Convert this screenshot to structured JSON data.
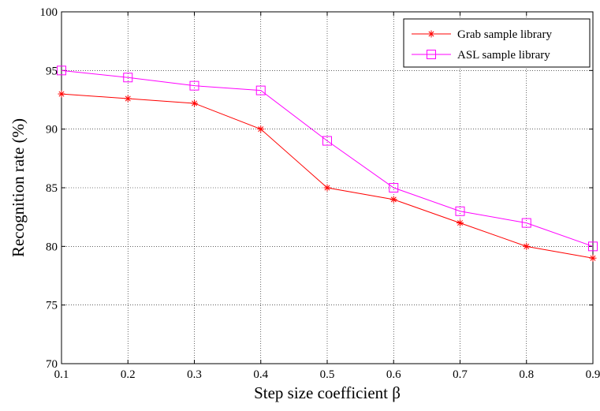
{
  "chart_data": {
    "type": "line",
    "title": "",
    "xlabel": "Step size coefficient β",
    "ylabel": "Recognition rate (%)",
    "x": [
      0.1,
      0.2,
      0.3,
      0.4,
      0.5,
      0.6,
      0.7,
      0.8,
      0.9
    ],
    "x_tick_labels": [
      "0.1",
      "0.2",
      "0.3",
      "0.4",
      "0.5",
      "0.6",
      "0.7",
      "0.8",
      "0.9"
    ],
    "y_tick_labels": [
      "70",
      "75",
      "80",
      "85",
      "90",
      "95",
      "100"
    ],
    "y_ticks": [
      70,
      75,
      80,
      85,
      90,
      95,
      100
    ],
    "xlim": [
      0.1,
      0.9
    ],
    "ylim": [
      70,
      100
    ],
    "grid": true,
    "legend_position": "top-right",
    "series": [
      {
        "name": "Grab sample library",
        "values": [
          93,
          92.6,
          92.2,
          90,
          85,
          84,
          82,
          80,
          79
        ],
        "color": "#ff0000",
        "marker": "asterisk"
      },
      {
        "name": "ASL sample library",
        "values": [
          95,
          94.4,
          93.7,
          93.3,
          89,
          85,
          83,
          82,
          80
        ],
        "color": "#ff00ff",
        "marker": "square"
      }
    ]
  }
}
